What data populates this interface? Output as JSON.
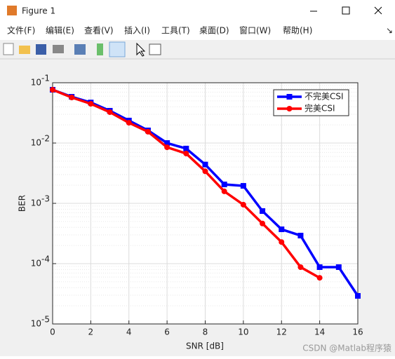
{
  "window": {
    "title": "Figure 1",
    "menu": [
      "文件(F)",
      "编辑(E)",
      "查看(V)",
      "插入(I)",
      "工具(T)",
      "桌面(D)",
      "窗口(W)",
      "帮助(H)"
    ],
    "watermark": "CSDN @Matlab程序猿"
  },
  "chart_data": {
    "type": "line",
    "x_label": "SNR [dB]",
    "y_label": "BER",
    "x": [
      0,
      1,
      2,
      3,
      4,
      5,
      6,
      7,
      8,
      9,
      10,
      11,
      12,
      13,
      14,
      15,
      16
    ],
    "series": [
      {
        "name": "不完美CSI",
        "color": "#0000ff",
        "marker": "square",
        "values": [
          0.0765,
          0.0585,
          0.047,
          0.0343,
          0.0236,
          0.0162,
          0.01,
          0.0081,
          0.0044,
          0.00206,
          0.00195,
          0.000745,
          0.000371,
          0.000292,
          8.75e-05,
          8.75e-05,
          2.92e-05
        ]
      },
      {
        "name": "完美CSI",
        "color": "#ff0000",
        "marker": "circle",
        "values": [
          0.0765,
          0.057,
          0.0448,
          0.0325,
          0.0217,
          0.0154,
          0.0085,
          0.0067,
          0.0034,
          0.00158,
          0.00095,
          0.000463,
          0.000228,
          8.75e-05,
          5.82e-05,
          null,
          null
        ]
      }
    ],
    "xlim": [
      0,
      16
    ],
    "xticks": [
      0,
      2,
      4,
      6,
      8,
      10,
      12,
      14,
      16
    ],
    "ylim": [
      1e-05,
      0.1
    ],
    "log_y": true,
    "yticks": [
      {
        "value": 1e-05,
        "label": "10",
        "exponent": "-5"
      },
      {
        "value": 0.0001,
        "label": "10",
        "exponent": "-4"
      },
      {
        "value": 0.001,
        "label": "10",
        "exponent": "-3"
      },
      {
        "value": 0.01,
        "label": "10",
        "exponent": "-2"
      },
      {
        "value": 0.1,
        "label": "10",
        "exponent": "-1"
      }
    ],
    "grid": true,
    "minor_grid": true,
    "legend": "northeast"
  }
}
